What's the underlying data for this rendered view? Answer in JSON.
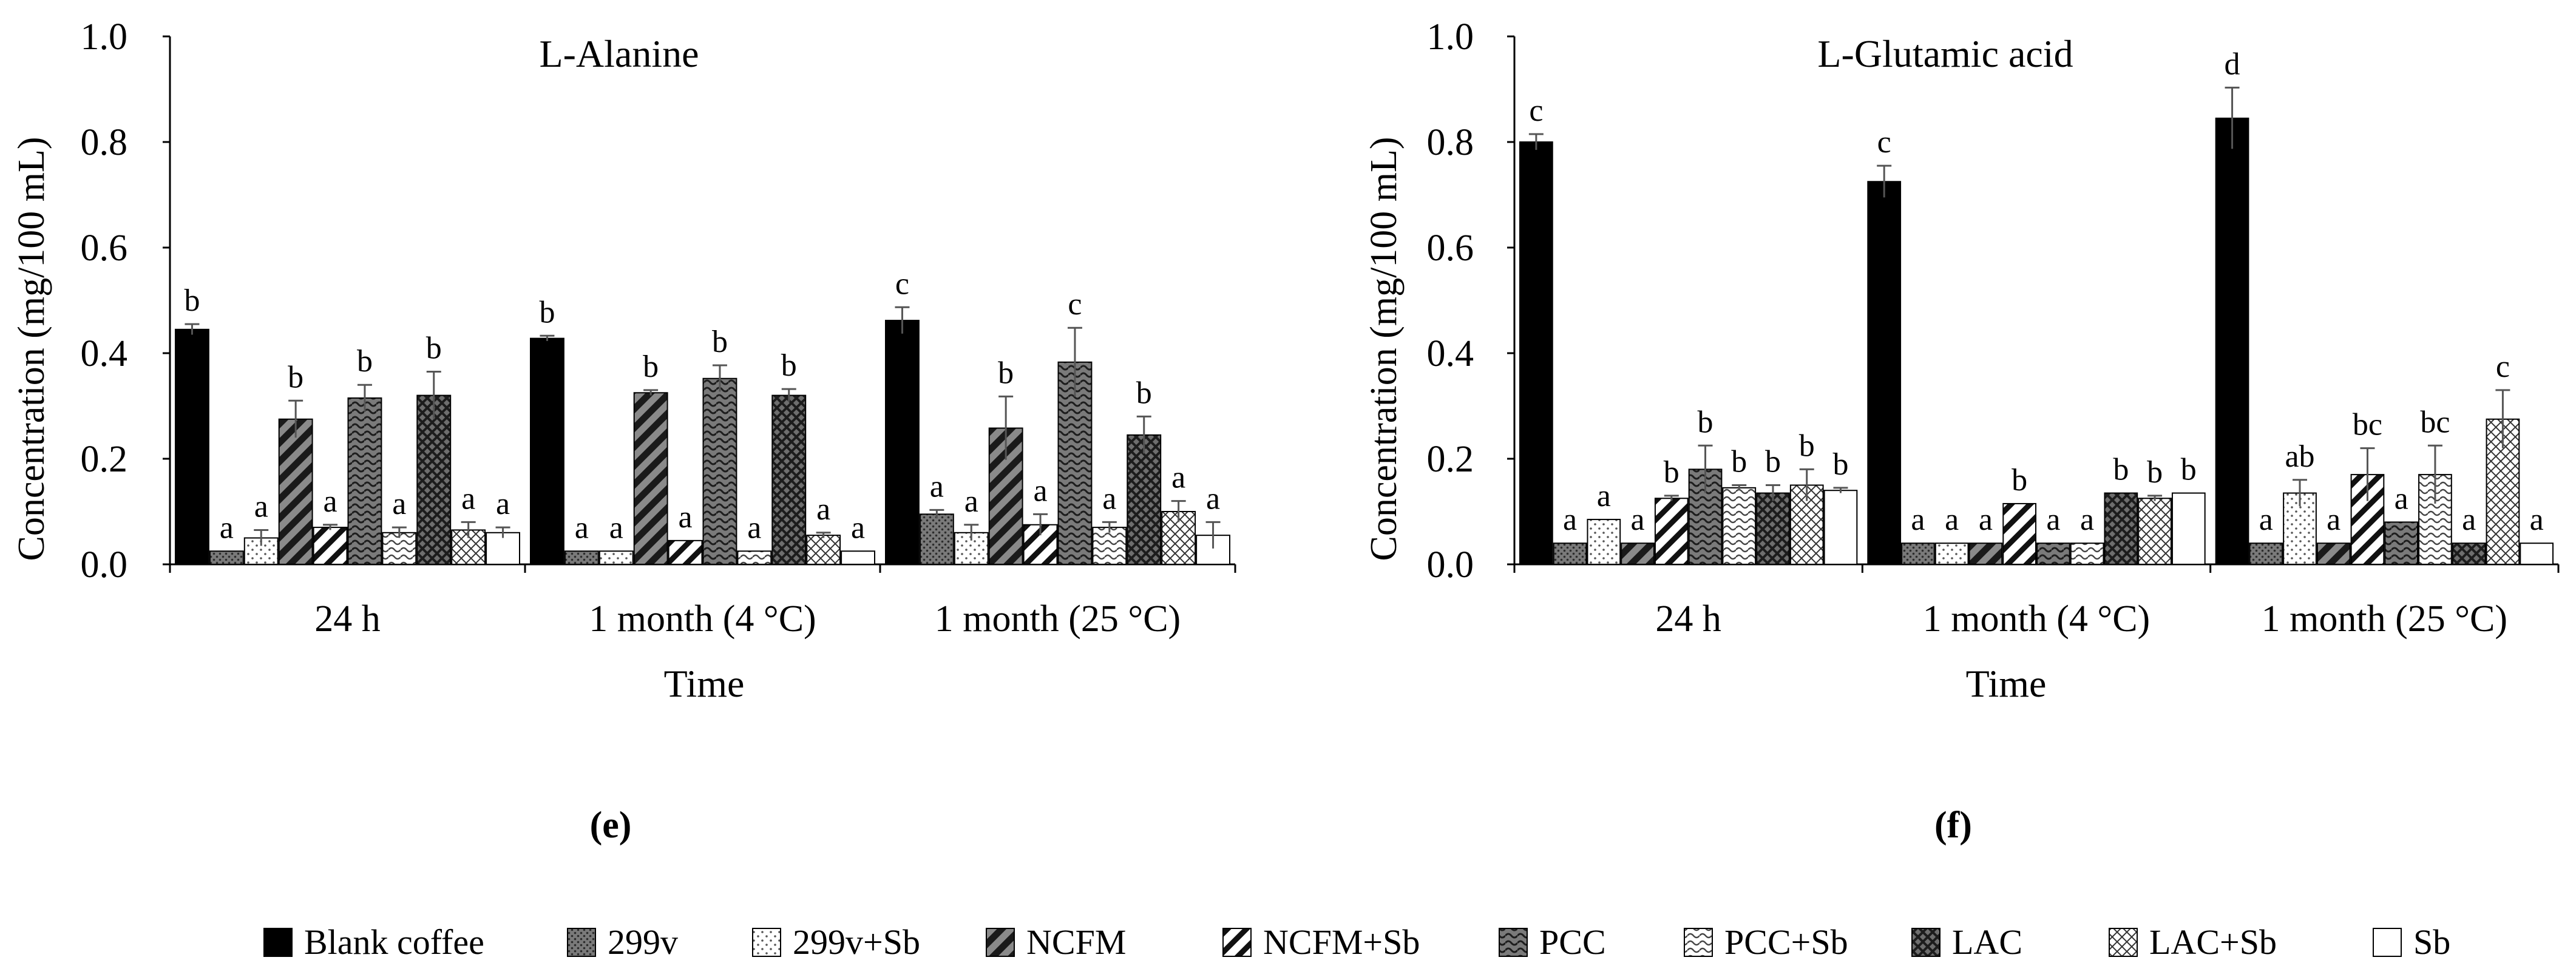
{
  "colors": {
    "ink": "#000000",
    "error_bar": "#555555"
  },
  "legend": [
    {
      "name": "Blank coffee",
      "pattern": "solid-black"
    },
    {
      "name": "299v",
      "pattern": "dots-gray"
    },
    {
      "name": "299v+Sb",
      "pattern": "sparse-dots"
    },
    {
      "name": "NCFM",
      "pattern": "wide-diag-dark"
    },
    {
      "name": "NCFM+Sb",
      "pattern": "wide-diag-light"
    },
    {
      "name": "PCC",
      "pattern": "wave-dark"
    },
    {
      "name": "PCC+Sb",
      "pattern": "wave-light"
    },
    {
      "name": "LAC",
      "pattern": "diamond-dark"
    },
    {
      "name": "LAC+Sb",
      "pattern": "cross-light"
    },
    {
      "name": "Sb",
      "pattern": "white"
    }
  ],
  "chart_data": [
    {
      "type": "bar",
      "panel_label": "(e)",
      "title": "L-Alanine",
      "xlabel": "Time",
      "ylabel": "Concentration (mg/100 mL)",
      "ylim": [
        0,
        1.0
      ],
      "yticks": [
        "0.0",
        "0.2",
        "0.4",
        "0.6",
        "0.8",
        "1.0"
      ],
      "grid": false,
      "categories": [
        "24 h",
        "1 month (4 °C)",
        "1 month (25 °C)"
      ],
      "series": [
        {
          "name": "Blank coffee",
          "values": [
            0.445,
            0.428,
            0.462
          ],
          "errors": [
            0.01,
            0.005,
            0.025
          ],
          "labels": [
            "b",
            "b",
            "c"
          ]
        },
        {
          "name": "299v",
          "values": [
            0.025,
            0.025,
            0.095
          ],
          "errors": [
            0.0,
            0.0,
            0.008
          ],
          "labels": [
            "a",
            "a",
            "a"
          ]
        },
        {
          "name": "299v+Sb",
          "values": [
            0.05,
            0.025,
            0.06
          ],
          "errors": [
            0.015,
            0.0,
            0.015
          ],
          "labels": [
            "a",
            "a",
            "a"
          ]
        },
        {
          "name": "NCFM",
          "values": [
            0.275,
            0.325,
            0.258
          ],
          "errors": [
            0.035,
            0.005,
            0.06
          ],
          "labels": [
            "b",
            "b",
            "b"
          ]
        },
        {
          "name": "NCFM+Sb",
          "values": [
            0.07,
            0.045,
            0.075
          ],
          "errors": [
            0.005,
            0.0,
            0.02
          ],
          "labels": [
            "a",
            "a",
            "a"
          ]
        },
        {
          "name": "PCC",
          "values": [
            0.315,
            0.352,
            0.383
          ],
          "errors": [
            0.025,
            0.025,
            0.065
          ],
          "labels": [
            "b",
            "b",
            "c"
          ]
        },
        {
          "name": "PCC+Sb",
          "values": [
            0.06,
            0.025,
            0.07
          ],
          "errors": [
            0.01,
            0.0,
            0.01
          ],
          "labels": [
            "a",
            "a",
            "a"
          ]
        },
        {
          "name": "LAC",
          "values": [
            0.32,
            0.32,
            0.245
          ],
          "errors": [
            0.045,
            0.012,
            0.035
          ],
          "labels": [
            "b",
            "b",
            "b"
          ]
        },
        {
          "name": "LAC+Sb",
          "values": [
            0.065,
            0.055,
            0.1
          ],
          "errors": [
            0.015,
            0.005,
            0.02
          ],
          "labels": [
            "a",
            "a",
            "a"
          ]
        },
        {
          "name": "Sb",
          "values": [
            0.06,
            0.025,
            0.055
          ],
          "errors": [
            0.01,
            0.0,
            0.025
          ],
          "labels": [
            "a",
            "a",
            "a"
          ]
        }
      ]
    },
    {
      "type": "bar",
      "panel_label": "(f)",
      "title": "L-Glutamic acid",
      "xlabel": "Time",
      "ylabel": "Concentration (mg/100 mL)",
      "ylim": [
        0,
        1.0
      ],
      "yticks": [
        "0.0",
        "0.2",
        "0.4",
        "0.6",
        "0.8",
        "1.0"
      ],
      "grid": false,
      "categories": [
        "24 h",
        "1 month (4 °C)",
        "1 month (25 °C)"
      ],
      "series": [
        {
          "name": "Blank coffee",
          "values": [
            0.8,
            0.725,
            0.845
          ],
          "errors": [
            0.015,
            0.03,
            0.058
          ],
          "labels": [
            "c",
            "c",
            "d"
          ]
        },
        {
          "name": "299v",
          "values": [
            0.04,
            0.04,
            0.04
          ],
          "errors": [
            0.0,
            0.0,
            0.0
          ],
          "labels": [
            "a",
            "a",
            "a"
          ]
        },
        {
          "name": "299v+Sb",
          "values": [
            0.085,
            0.04,
            0.135
          ],
          "errors": [
            0.0,
            0.0,
            0.025
          ],
          "labels": [
            "a",
            "a",
            "ab"
          ]
        },
        {
          "name": "NCFM",
          "values": [
            0.04,
            0.04,
            0.04
          ],
          "errors": [
            0.0,
            0.0,
            0.0
          ],
          "labels": [
            "a",
            "a",
            "a"
          ]
        },
        {
          "name": "NCFM+Sb",
          "values": [
            0.125,
            0.115,
            0.17
          ],
          "errors": [
            0.005,
            0.0,
            0.05
          ],
          "labels": [
            "b",
            "b",
            "bc"
          ]
        },
        {
          "name": "PCC",
          "values": [
            0.18,
            0.04,
            0.08
          ],
          "errors": [
            0.045,
            0.0,
            0.0
          ],
          "labels": [
            "b",
            "a",
            "a"
          ]
        },
        {
          "name": "PCC+Sb",
          "values": [
            0.145,
            0.04,
            0.17
          ],
          "errors": [
            0.005,
            0.0,
            0.055
          ],
          "labels": [
            "b",
            "a",
            "bc"
          ]
        },
        {
          "name": "LAC",
          "values": [
            0.135,
            0.135,
            0.04
          ],
          "errors": [
            0.015,
            0.0,
            0.0
          ],
          "labels": [
            "b",
            "b",
            "a"
          ]
        },
        {
          "name": "LAC+Sb",
          "values": [
            0.15,
            0.125,
            0.275
          ],
          "errors": [
            0.03,
            0.005,
            0.055
          ],
          "labels": [
            "b",
            "b",
            "c"
          ]
        },
        {
          "name": "Sb",
          "values": [
            0.14,
            0.135,
            0.04
          ],
          "errors": [
            0.005,
            0.0,
            0.0
          ],
          "labels": [
            "b",
            "b",
            "a"
          ]
        }
      ]
    }
  ]
}
